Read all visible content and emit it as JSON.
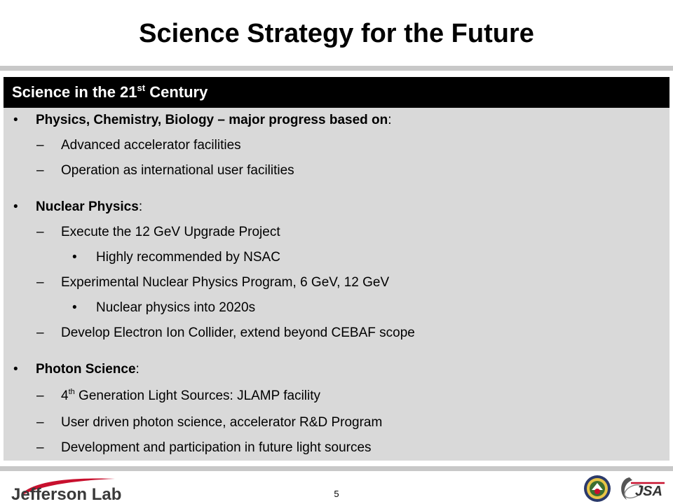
{
  "slide": {
    "title": "Science Strategy for the Future",
    "page_number": "5"
  },
  "section": {
    "header_text": "Science in the 21",
    "header_sup": "st",
    "header_tail": " Century"
  },
  "bullets": {
    "b1": {
      "bold": "Physics, Chemistry, Biology – major progress based on",
      "rest": ":"
    },
    "b1_s1": "Advanced accelerator facilities",
    "b1_s2": "Operation as international user facilities",
    "b2": {
      "bold": "Nuclear Physics",
      "rest": ":"
    },
    "b2_s1": "Execute the 12 GeV Upgrade Project",
    "b2_s1_a": "Highly recommended by NSAC",
    "b2_s2": "Experimental Nuclear Physics Program, 6 GeV, 12 GeV",
    "b2_s2_a": "Nuclear physics into 2020s",
    "b2_s3": "Develop Electron Ion Collider, extend beyond CEBAF scope",
    "b3": {
      "bold": "Photon Science",
      "rest": ":"
    },
    "b3_s1": {
      "pre": "4",
      "sup": "th",
      "post": " Generation Light Sources: JLAMP facility"
    },
    "b3_s2": "User driven photon science, accelerator R&D Program",
    "b3_s3": "Development and participation in future light sources"
  },
  "markers": {
    "bullet": "•",
    "dash": "–"
  },
  "footer": {
    "logo_text": "Jefferson Lab",
    "jsa_text": "JSA"
  },
  "colors": {
    "panel": "#d9d9d9",
    "header": "#000000",
    "rule": "#c8c8c8",
    "logo_red": "#c8102e"
  },
  "icons": {
    "left_logo": "jefferson-lab-logo",
    "seal": "doe-seal-icon",
    "jsa": "jsa-logo"
  }
}
